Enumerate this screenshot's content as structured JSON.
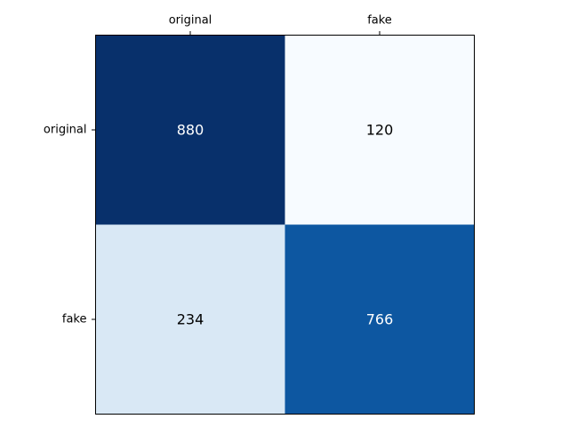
{
  "chart_data": {
    "type": "heatmap",
    "title": "",
    "xlabel": "",
    "ylabel": "",
    "x_categories": [
      "original",
      "fake"
    ],
    "y_categories": [
      "original",
      "fake"
    ],
    "x_tick_position": "top",
    "values": [
      [
        880,
        120
      ],
      [
        234,
        766
      ]
    ],
    "value_range": [
      120,
      880
    ],
    "colormap": "Blues",
    "grid": false,
    "legend": "none"
  }
}
